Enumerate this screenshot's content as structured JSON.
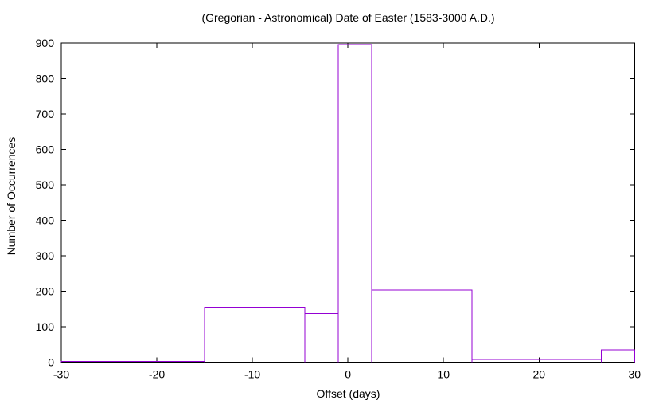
{
  "title": "(Gregorian - Astronomical) Date of Easter (1583-3000 A.D.)",
  "colors": {
    "series": "#9400d3",
    "axis": "#000000",
    "background": "#ffffff"
  },
  "chart_data": {
    "type": "bar",
    "subtype": "histogram-outline-boxes",
    "title": "(Gregorian - Astronomical) Date of Easter (1583-3000 A.D.)",
    "xlabel": "Offset (days)",
    "ylabel": "Number of Occurrences",
    "xlim": [
      -30,
      30
    ],
    "ylim": [
      0,
      900
    ],
    "x_ticks": [
      -30,
      -20,
      -10,
      0,
      10,
      20,
      30
    ],
    "y_ticks": [
      0,
      100,
      200,
      300,
      400,
      500,
      600,
      700,
      800,
      900
    ],
    "grid": false,
    "legend": "none",
    "series_color": "#9400d3",
    "bins": [
      {
        "x_start": -30,
        "x_end": -15,
        "count": 2
      },
      {
        "x_start": -15,
        "x_end": -4.5,
        "count": 155
      },
      {
        "x_start": -4.5,
        "x_end": -1,
        "count": 137
      },
      {
        "x_start": -1,
        "x_end": 2.5,
        "count": 895
      },
      {
        "x_start": 2.5,
        "x_end": 13,
        "count": 203
      },
      {
        "x_start": 13,
        "x_end": 26.5,
        "count": 7
      },
      {
        "x_start": 26.5,
        "x_end": 30,
        "count": 34
      }
    ]
  }
}
